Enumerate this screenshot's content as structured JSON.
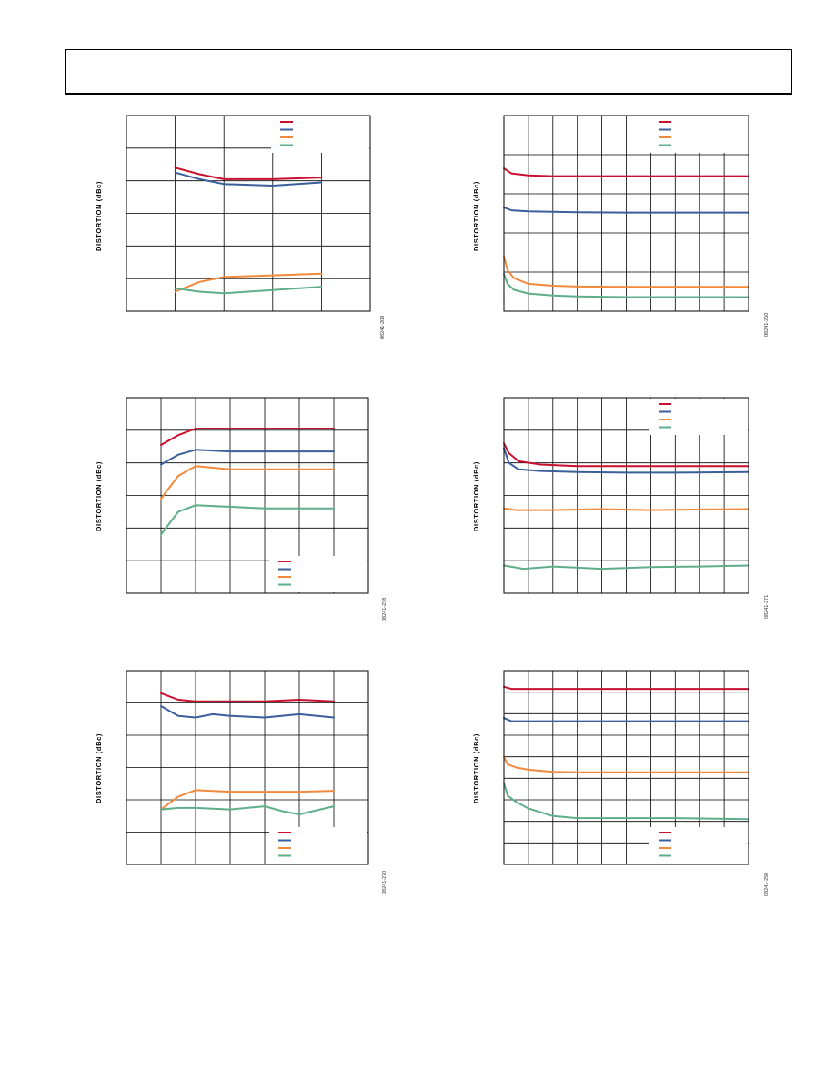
{
  "page": {
    "frame": "header-box"
  },
  "chart_data": [
    {
      "type": "line",
      "ylabel": "DISTORTION (dBc)",
      "fignum": "08241-209",
      "grid": true,
      "xlim": [
        0,
        5
      ],
      "ylim": [
        -6,
        0
      ],
      "xdivisions": 5,
      "ydivisions": 6,
      "legend": {
        "placement": "top-right",
        "count": 4
      },
      "series": [
        {
          "color": "#c8102e",
          "x": [
            1,
            1.5,
            2,
            3,
            4
          ],
          "y": [
            -1.6,
            -1.8,
            -1.95,
            -1.95,
            -1.9
          ]
        },
        {
          "color": "#3a5f9b",
          "x": [
            1,
            1.5,
            2,
            3,
            4
          ],
          "y": [
            -1.75,
            -1.95,
            -2.1,
            -2.15,
            -2.05
          ]
        },
        {
          "color": "#f08a3c",
          "x": [
            1,
            1.5,
            2,
            3,
            4
          ],
          "y": [
            -5.4,
            -5.1,
            -4.95,
            -4.9,
            -4.85
          ]
        },
        {
          "color": "#5fae8a",
          "x": [
            1,
            1.5,
            2,
            3,
            4
          ],
          "y": [
            -5.3,
            -5.4,
            -5.45,
            -5.35,
            -5.25
          ]
        }
      ]
    },
    {
      "type": "line",
      "ylabel": "DISTORTION (dBc)",
      "fignum": "08241-250",
      "grid": true,
      "xlim": [
        0,
        10
      ],
      "ylim": [
        -5,
        0
      ],
      "xdivisions": 10,
      "ydivisions": 5,
      "legend": {
        "placement": "top-right",
        "count": 4
      },
      "series": [
        {
          "color": "#c8102e",
          "x": [
            0,
            0.3,
            1,
            2,
            3,
            5,
            7,
            10
          ],
          "y": [
            -1.35,
            -1.48,
            -1.53,
            -1.55,
            -1.55,
            -1.55,
            -1.55,
            -1.55
          ]
        },
        {
          "color": "#3a5f9b",
          "x": [
            0,
            0.3,
            1,
            2,
            3,
            5,
            7,
            10
          ],
          "y": [
            -2.35,
            -2.42,
            -2.45,
            -2.46,
            -2.47,
            -2.48,
            -2.48,
            -2.48
          ]
        },
        {
          "color": "#f08a3c",
          "x": [
            0,
            0.15,
            0.4,
            1,
            2,
            3,
            5,
            7,
            10
          ],
          "y": [
            -3.6,
            -3.95,
            -4.15,
            -4.3,
            -4.35,
            -4.37,
            -4.38,
            -4.38,
            -4.38
          ]
        },
        {
          "color": "#5fae8a",
          "x": [
            0,
            0.15,
            0.4,
            1,
            2,
            3,
            5,
            7,
            10
          ],
          "y": [
            -4.05,
            -4.3,
            -4.45,
            -4.55,
            -4.6,
            -4.62,
            -4.64,
            -4.64,
            -4.64
          ]
        }
      ]
    },
    {
      "type": "line",
      "ylabel": "DISTORTION (dBc)",
      "fignum": "08241-238",
      "grid": true,
      "xlim": [
        0,
        7
      ],
      "ylim": [
        -6,
        0
      ],
      "xdivisions": 7,
      "ydivisions": 6,
      "legend": {
        "placement": "bottom-right",
        "count": 4
      },
      "series": [
        {
          "color": "#c8102e",
          "x": [
            1,
            1.5,
            2,
            3,
            4,
            5,
            6
          ],
          "y": [
            -1.45,
            -1.15,
            -0.95,
            -0.95,
            -0.95,
            -0.95,
            -0.95
          ]
        },
        {
          "color": "#3a5f9b",
          "x": [
            1,
            1.5,
            2,
            3,
            4,
            5,
            6
          ],
          "y": [
            -2.05,
            -1.75,
            -1.6,
            -1.65,
            -1.65,
            -1.65,
            -1.65
          ]
        },
        {
          "color": "#f08a3c",
          "x": [
            1,
            1.5,
            2,
            3,
            4,
            5,
            6
          ],
          "y": [
            -3.1,
            -2.4,
            -2.1,
            -2.2,
            -2.2,
            -2.2,
            -2.2
          ]
        },
        {
          "color": "#5fae8a",
          "x": [
            1,
            1.5,
            2,
            3,
            4,
            5,
            6
          ],
          "y": [
            -4.2,
            -3.5,
            -3.3,
            -3.35,
            -3.4,
            -3.4,
            -3.4
          ]
        }
      ]
    },
    {
      "type": "line",
      "ylabel": "DISTORTION (dBc)",
      "fignum": "08241-271",
      "grid": true,
      "xlim": [
        0,
        10
      ],
      "ylim": [
        -6,
        0
      ],
      "xdivisions": 10,
      "ydivisions": 6,
      "legend": {
        "placement": "top-right",
        "count": 4
      },
      "series": [
        {
          "color": "#c8102e",
          "x": [
            0,
            0.2,
            0.6,
            1.5,
            3,
            5,
            7,
            10
          ],
          "y": [
            -1.4,
            -1.7,
            -1.95,
            -2.05,
            -2.1,
            -2.1,
            -2.1,
            -2.1
          ]
        },
        {
          "color": "#3a5f9b",
          "x": [
            0,
            0.2,
            0.6,
            1.5,
            3,
            5,
            7,
            10
          ],
          "y": [
            -1.55,
            -2.0,
            -2.2,
            -2.25,
            -2.28,
            -2.3,
            -2.3,
            -2.28
          ]
        },
        {
          "color": "#f08a3c",
          "x": [
            0,
            0.5,
            2,
            4,
            6,
            8,
            10
          ],
          "y": [
            -3.4,
            -3.45,
            -3.45,
            -3.42,
            -3.45,
            -3.43,
            -3.42
          ]
        },
        {
          "color": "#5fae8a",
          "x": [
            0,
            0.8,
            2,
            4,
            6,
            8,
            10
          ],
          "y": [
            -5.15,
            -5.25,
            -5.18,
            -5.25,
            -5.2,
            -5.18,
            -5.15
          ]
        }
      ]
    },
    {
      "type": "line",
      "ylabel": "DISTORTION (dBc)",
      "fignum": "08241-270",
      "grid": true,
      "xlim": [
        0,
        7
      ],
      "ylim": [
        -6,
        0
      ],
      "xdivisions": 7,
      "ydivisions": 6,
      "legend": {
        "placement": "bottom-right",
        "count": 4
      },
      "series": [
        {
          "color": "#c8102e",
          "x": [
            1,
            1.5,
            2,
            3,
            4,
            5,
            6
          ],
          "y": [
            -0.7,
            -0.9,
            -0.95,
            -0.95,
            -0.95,
            -0.9,
            -0.95
          ]
        },
        {
          "color": "#3a5f9b",
          "x": [
            1,
            1.5,
            2,
            2.5,
            3,
            4,
            5,
            6
          ],
          "y": [
            -1.1,
            -1.4,
            -1.45,
            -1.35,
            -1.4,
            -1.45,
            -1.35,
            -1.45
          ]
        },
        {
          "color": "#f08a3c",
          "x": [
            1,
            1.5,
            2,
            3,
            4,
            5,
            6
          ],
          "y": [
            -4.3,
            -3.9,
            -3.7,
            -3.75,
            -3.75,
            -3.75,
            -3.72
          ]
        },
        {
          "color": "#5fae8a",
          "x": [
            1,
            1.5,
            2,
            3,
            4,
            4.5,
            5,
            6
          ],
          "y": [
            -4.3,
            -4.25,
            -4.25,
            -4.3,
            -4.2,
            -4.35,
            -4.45,
            -4.2
          ]
        }
      ]
    },
    {
      "type": "line",
      "ylabel": "DISTORTION (dBc)",
      "fignum": "08241-250",
      "grid": true,
      "xlim": [
        0,
        10
      ],
      "ylim": [
        -9,
        0
      ],
      "xdivisions": 10,
      "ydivisions": 9,
      "legend": {
        "placement": "bottom-right",
        "count": 4
      },
      "series": [
        {
          "color": "#c8102e",
          "x": [
            0,
            0.3,
            1,
            3,
            5,
            7,
            10
          ],
          "y": [
            -0.75,
            -0.85,
            -0.85,
            -0.85,
            -0.85,
            -0.85,
            -0.85
          ]
        },
        {
          "color": "#3a5f9b",
          "x": [
            0,
            0.3,
            1,
            3,
            5,
            7,
            10
          ],
          "y": [
            -2.2,
            -2.35,
            -2.35,
            -2.35,
            -2.35,
            -2.35,
            -2.35
          ]
        },
        {
          "color": "#f08a3c",
          "x": [
            0,
            0.15,
            0.5,
            1,
            2,
            3,
            5,
            7,
            10
          ],
          "y": [
            -4.0,
            -4.35,
            -4.5,
            -4.6,
            -4.7,
            -4.72,
            -4.72,
            -4.72,
            -4.72
          ]
        },
        {
          "color": "#5fae8a",
          "x": [
            0,
            0.15,
            0.5,
            1,
            2,
            3,
            5,
            7,
            10
          ],
          "y": [
            -5.2,
            -5.8,
            -6.1,
            -6.4,
            -6.75,
            -6.85,
            -6.85,
            -6.85,
            -6.9
          ]
        }
      ]
    }
  ]
}
